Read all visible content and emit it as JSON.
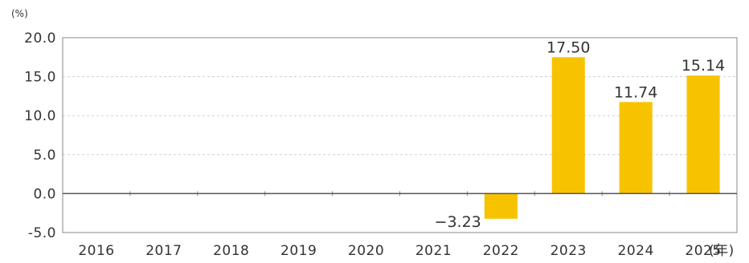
{
  "chart_data": {
    "type": "bar",
    "title": "",
    "xlabel": "",
    "ylabel": "",
    "y_unit": "(%)",
    "x_unit": "(年)",
    "categories": [
      "2016",
      "2017",
      "2018",
      "2019",
      "2020",
      "2021",
      "2022",
      "2023",
      "2024",
      "2025"
    ],
    "values": [
      null,
      null,
      null,
      null,
      null,
      null,
      -3.23,
      17.5,
      11.74,
      15.14
    ],
    "value_labels": [
      "",
      "",
      "",
      "",
      "",
      "",
      "−3.23",
      "17.50",
      "11.74",
      "15.14"
    ],
    "ylim": [
      -5.0,
      20.0
    ],
    "yticks": [
      "20.0",
      "15.0",
      "10.0",
      "5.0",
      "0.0",
      "-5.0"
    ],
    "grid": true,
    "legend": "none",
    "colors": {
      "bar": "#F7C300",
      "grid": "#cfcfcf",
      "zero_line": "#555555",
      "frame": "#888888",
      "text": "#333333"
    }
  }
}
